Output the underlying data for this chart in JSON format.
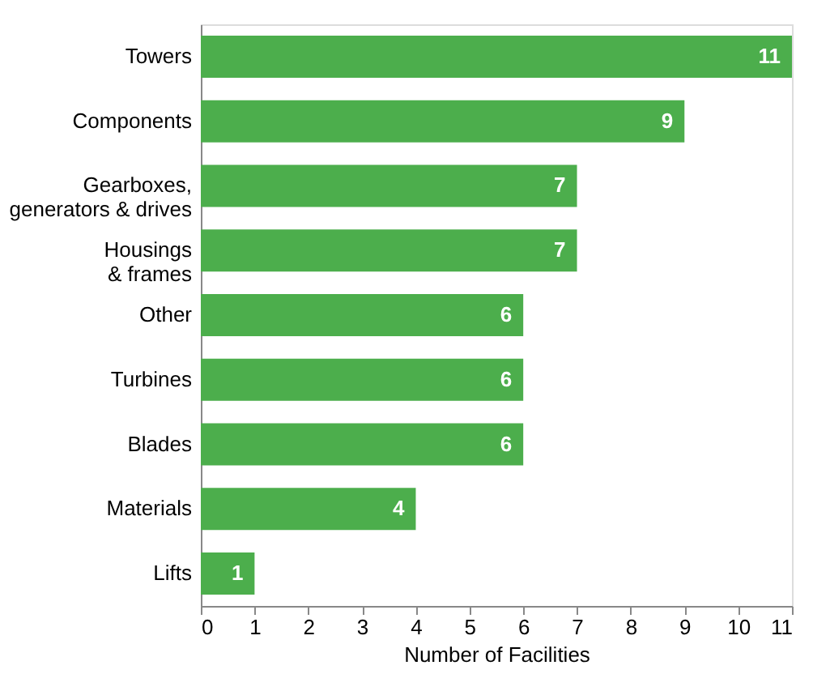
{
  "chart_data": {
    "type": "bar",
    "orientation": "horizontal",
    "categories": [
      "Towers",
      "Components",
      "Gearboxes,\ngenerators & drives",
      "Housings\n& frames",
      "Other",
      "Turbines",
      "Blades",
      "Materials",
      "Lifts"
    ],
    "values": [
      11,
      9,
      7,
      7,
      6,
      6,
      6,
      4,
      1
    ],
    "color": "#4cae4c",
    "xlabel": "Number of Facilities",
    "xlim": [
      0,
      11
    ],
    "xticks": [
      0,
      1,
      2,
      3,
      4,
      5,
      6,
      7,
      8,
      9,
      10,
      11
    ],
    "data_labels": true,
    "grid": false
  }
}
